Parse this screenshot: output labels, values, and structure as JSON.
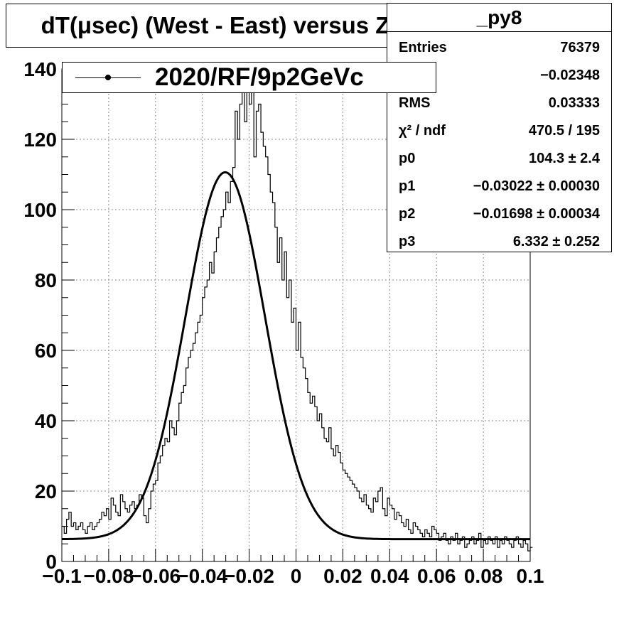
{
  "title": "dT(μsec) (West - East) versus Z",
  "legend": {
    "label": "2020/RF/9p2GeVc"
  },
  "stats": {
    "name": "_py8",
    "rows": [
      {
        "label": "Entries",
        "value": "76379"
      },
      {
        "label": "",
        "value": "−0.02348"
      },
      {
        "label": "RMS",
        "value": "0.03333"
      },
      {
        "label": "χ² / ndf",
        "value": "470.5 / 195"
      },
      {
        "label": "p0",
        "value": "104.3 ± 2.4"
      },
      {
        "label": "p1",
        "value": "−0.03022 ± 0.00030"
      },
      {
        "label": "p2",
        "value": "−0.01698 ± 0.00034"
      },
      {
        "label": "p3",
        "value": "6.332 ± 0.252"
      }
    ]
  },
  "chart_data": {
    "type": "histogram",
    "title": "dT(μsec) (West - East) versus Z",
    "xlim": [
      -0.1,
      0.1
    ],
    "ylim": [
      0,
      140
    ],
    "xticks": [
      -0.1,
      -0.08,
      -0.06,
      -0.04,
      -0.02,
      0,
      0.02,
      0.04,
      0.06,
      0.08,
      0.1
    ],
    "xtick_labels": [
      "−0.1",
      "−0.08",
      "−0.06",
      "−0.04",
      "−0.02",
      "0",
      "0.02",
      "0.04",
      "0.06",
      "0.08",
      "0.1"
    ],
    "yticks": [
      0,
      20,
      40,
      60,
      80,
      100,
      120,
      140
    ],
    "ytick_labels": [
      "0",
      "20",
      "40",
      "60",
      "80",
      "100",
      "120",
      "140"
    ],
    "grid": true,
    "bin_width": 0.001,
    "counts": [
      10,
      8,
      12,
      14,
      10,
      11,
      9,
      10,
      11,
      9,
      8,
      10,
      11,
      9,
      10,
      11,
      12,
      14,
      13,
      15,
      12,
      18,
      16,
      14,
      13,
      19,
      17,
      15,
      14,
      16,
      17,
      15,
      16,
      19,
      18,
      13,
      11,
      15,
      20,
      22,
      23,
      28,
      30,
      33,
      35,
      34,
      40,
      38,
      36,
      40,
      45,
      48,
      50,
      55,
      58,
      60,
      62,
      65,
      68,
      70,
      75,
      78,
      80,
      85,
      82,
      88,
      92,
      95,
      98,
      100,
      105,
      102,
      108,
      112,
      128,
      120,
      130,
      135,
      125,
      140,
      130,
      135,
      115,
      128,
      130,
      122,
      118,
      115,
      110,
      105,
      102,
      95,
      85,
      92,
      80,
      88,
      75,
      80,
      68,
      72,
      60,
      68,
      58,
      55,
      52,
      48,
      45,
      47,
      44,
      40,
      42,
      38,
      35,
      34,
      38,
      32,
      30,
      33,
      31,
      28,
      26,
      25,
      24,
      23,
      22,
      21,
      20,
      18,
      17,
      19,
      16,
      15,
      14,
      18,
      17,
      20,
      21,
      15,
      13,
      18,
      16,
      15,
      12,
      14,
      13,
      11,
      10,
      12,
      9,
      8,
      11,
      10,
      9,
      8,
      7,
      9,
      8,
      7,
      10,
      9,
      8,
      6,
      7,
      8,
      6,
      5,
      7,
      6,
      8,
      5,
      6,
      7,
      4,
      5,
      6,
      7,
      5,
      6,
      8,
      4,
      6,
      5,
      7,
      6,
      5,
      7,
      4,
      6,
      5,
      7,
      6,
      5,
      4,
      6,
      7,
      5,
      4,
      6,
      5,
      3,
      4
    ],
    "fit": {
      "model": "gaus + const",
      "p0": 104.3,
      "p1": -0.03022,
      "p2": -0.01698,
      "p3": 6.332
    }
  }
}
